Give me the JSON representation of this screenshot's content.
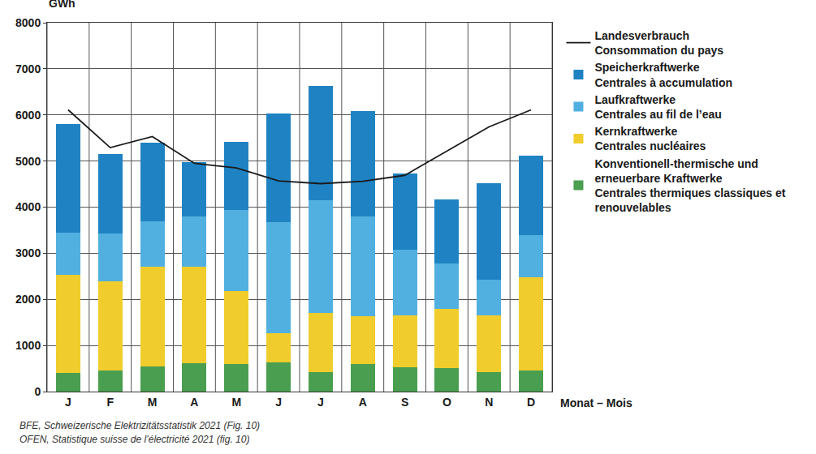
{
  "chart_data": {
    "type": "bar",
    "stacked": true,
    "y_label": "GWh",
    "x_label": "Monat – Mois",
    "source": [
      "BFE, Schweizerische Elektrizitätsstatistik 2021 (Fig. 10)",
      "OFEN, Statistique suisse de l’électricité 2021 (fig. 10)"
    ],
    "categories": [
      "J",
      "F",
      "M",
      "A",
      "M",
      "J",
      "J",
      "A",
      "S",
      "O",
      "N",
      "D"
    ],
    "series": [
      {
        "name": "Konventionell-thermische und\nerneuerbare Kraftwerke\nCentrales thermiques classiques et\nrenouvelables",
        "type": "bar",
        "color": "#4a9e4f",
        "values": [
          400,
          450,
          540,
          610,
          600,
          630,
          430,
          590,
          530,
          510,
          420,
          450
        ]
      },
      {
        "name": "Kernkraftwerke\nCentrales nucléaires",
        "type": "bar",
        "color": "#f0cd2c",
        "values": [
          2140,
          1940,
          2170,
          2100,
          1580,
          630,
          1270,
          1050,
          1120,
          1280,
          1230,
          2030
        ]
      },
      {
        "name": "Laufkraftwerke\nCentrales au fil de l’eau",
        "type": "bar",
        "color": "#51b0df",
        "values": [
          910,
          1030,
          990,
          1080,
          1750,
          2410,
          2450,
          2150,
          1420,
          990,
          770,
          920
        ]
      },
      {
        "name": "Speicherkraftwerke\nCentrales à accumulation",
        "type": "bar",
        "color": "#1f82c2",
        "values": [
          2350,
          1730,
          1690,
          1190,
          1480,
          2360,
          2470,
          2290,
          1660,
          1390,
          2090,
          1710
        ]
      },
      {
        "name": "Landesverbrauch\nConsommation du pays",
        "type": "line",
        "color": "#1a1a1a",
        "values": [
          6110,
          5290,
          5530,
          4950,
          4850,
          4570,
          4510,
          4560,
          4690,
          5220,
          5740,
          6110
        ]
      }
    ],
    "ylim": [
      0,
      8000
    ],
    "yticks": [
      0,
      1000,
      2000,
      3000,
      4000,
      5000,
      6000,
      7000,
      8000
    ],
    "grid": true,
    "legend": "right"
  }
}
